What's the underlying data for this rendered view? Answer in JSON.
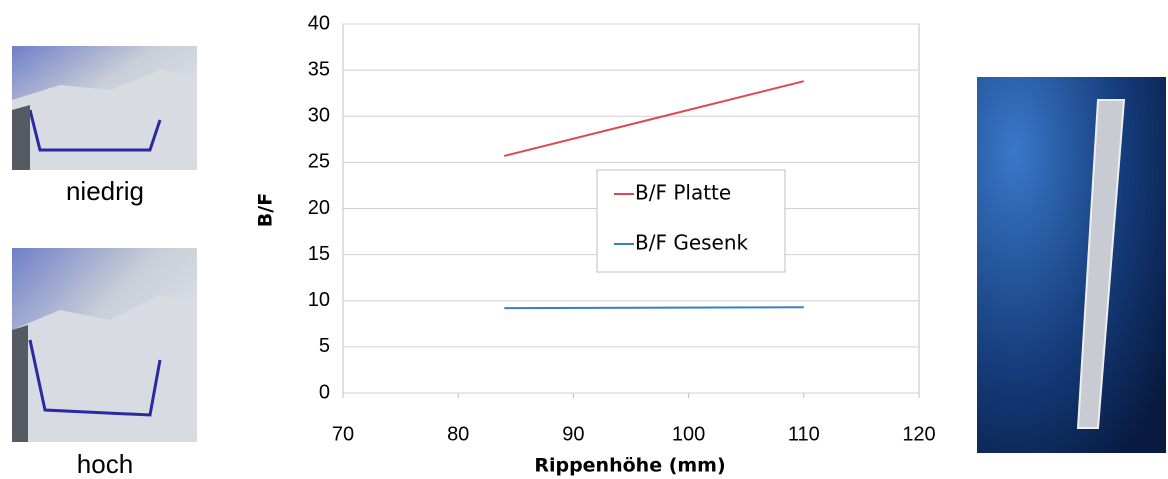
{
  "images": [
    {
      "label": "niedrig"
    },
    {
      "label": "hoch"
    }
  ],
  "chart_data": {
    "type": "line",
    "x_label": "Rippenhöhe (mm)",
    "y_label": "B/F",
    "x": [
      84,
      110
    ],
    "series": [
      {
        "name": "B/F Platte",
        "color": "#e0474c",
        "values": [
          25.7,
          33.8
        ]
      },
      {
        "name": "B/F Gesenk",
        "color": "#3a7fc6",
        "values": [
          9.2,
          9.3
        ]
      }
    ],
    "xlim": [
      70,
      120
    ],
    "xticks": [
      70,
      80,
      90,
      100,
      110,
      120
    ],
    "ylim": [
      0,
      40
    ],
    "yticks": [
      0,
      5,
      10,
      15,
      20,
      25,
      30,
      35,
      40
    ],
    "grid": true
  }
}
